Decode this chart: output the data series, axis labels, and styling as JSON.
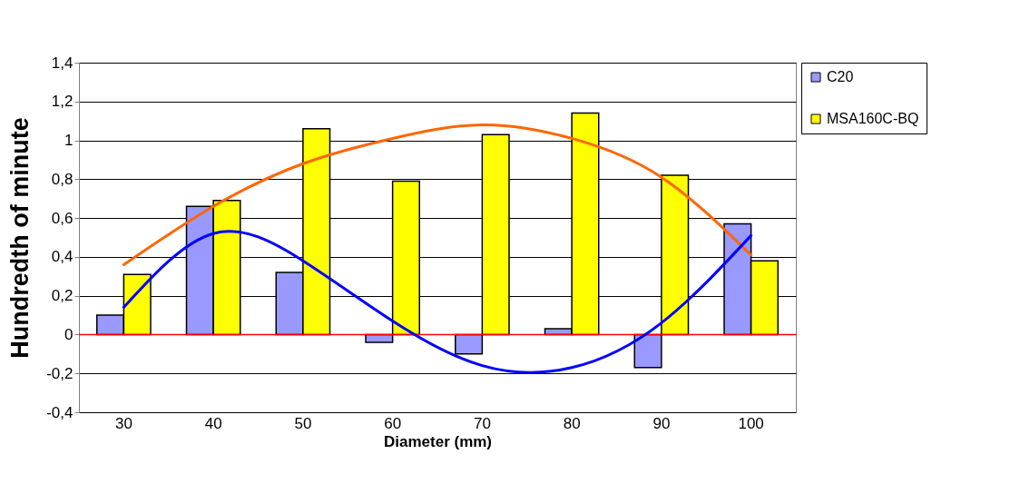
{
  "chart_data": {
    "type": "bar",
    "xlabel": "Diameter (mm)",
    "ylabel": "Hundredth of minute",
    "categories": [
      "30",
      "40",
      "50",
      "60",
      "70",
      "80",
      "90",
      "100"
    ],
    "series": [
      {
        "name": "C20",
        "color": "#9999ff",
        "values": [
          0.1,
          0.66,
          0.32,
          -0.04,
          -0.1,
          0.03,
          -0.17,
          0.57
        ]
      },
      {
        "name": "MSA160C-BQ",
        "color": "#ffff00",
        "values": [
          0.31,
          0.69,
          1.06,
          0.79,
          1.03,
          1.14,
          0.82,
          0.38
        ]
      },
      {
        "type": "line",
        "color": "#ff6600",
        "values": [
          0.36,
          0.66,
          0.88,
          1.01,
          1.08,
          1.01,
          0.81,
          0.41
        ]
      },
      {
        "type": "line",
        "color": "#0000ff",
        "values": [
          0.14,
          0.52,
          0.38,
          0.07,
          -0.16,
          -0.17,
          0.06,
          0.51
        ]
      }
    ],
    "ylim": [
      -0.4,
      1.4
    ],
    "yticks": [
      {
        "value": -0.4,
        "label": "-0,4"
      },
      {
        "value": -0.2,
        "label": "-0,2"
      },
      0,
      {
        "value": 0.2,
        "label": "0,2"
      },
      {
        "value": 0.4,
        "label": "0,4"
      },
      {
        "value": 0.6,
        "label": "0,6"
      },
      {
        "value": 0.8,
        "label": "0,8"
      },
      1,
      {
        "value": 1.2,
        "label": "1,2"
      },
      {
        "value": 1.4,
        "label": "1,4"
      }
    ],
    "ref_lines": [
      {
        "axis": "y",
        "value": 0,
        "color": "#ff0000"
      }
    ],
    "grid": "y",
    "legend": "right"
  }
}
